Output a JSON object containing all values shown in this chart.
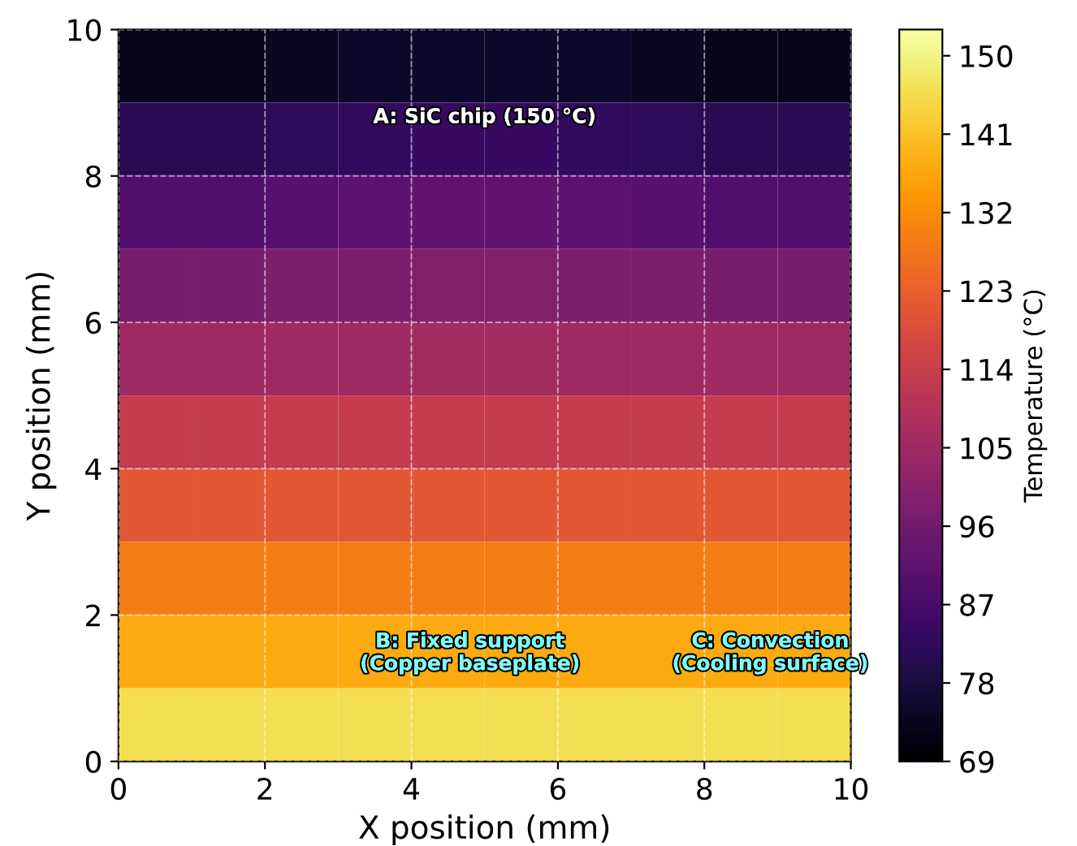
{
  "chart_data": {
    "type": "heatmap",
    "xlabel": "X position (mm)",
    "ylabel": "Y position (mm)",
    "clabel": "Temperature (°C)",
    "xlim": [
      0,
      10
    ],
    "ylim": [
      0,
      10
    ],
    "xticks": [
      0,
      2,
      4,
      6,
      8,
      10
    ],
    "yticks": [
      0,
      2,
      4,
      6,
      8,
      10
    ],
    "clim": [
      69,
      153
    ],
    "cticks": [
      69,
      78,
      87,
      96,
      105,
      114,
      123,
      132,
      141,
      150
    ],
    "grid": true,
    "cells": [
      [
        73,
        73,
        74,
        75,
        75,
        75,
        75,
        74,
        73,
        73
      ],
      [
        81,
        81,
        82,
        83,
        84,
        84,
        83,
        82,
        81,
        81
      ],
      [
        89,
        89,
        90,
        91,
        92,
        92,
        91,
        90,
        89,
        89
      ],
      [
        97,
        97,
        98,
        98,
        99,
        99,
        98,
        98,
        97,
        97
      ],
      [
        105,
        105,
        105,
        105,
        106,
        106,
        105,
        105,
        105,
        105
      ],
      [
        113,
        113,
        113,
        113,
        113,
        113,
        113,
        113,
        113,
        113
      ],
      [
        121,
        121,
        121,
        121,
        121,
        121,
        121,
        121,
        121,
        121
      ],
      [
        129,
        129,
        129,
        129,
        129,
        129,
        129,
        129,
        129,
        129
      ],
      [
        137,
        137,
        137,
        137,
        137,
        137,
        137,
        137,
        137,
        137
      ],
      [
        146,
        146,
        146,
        146,
        146,
        146,
        146,
        146,
        146,
        146
      ]
    ],
    "annotations": [
      "A: SiC chip (150 °C)",
      "B: Fixed support\n(Copper baseplate)",
      "C: Convection\n(Cooling surface)"
    ]
  }
}
